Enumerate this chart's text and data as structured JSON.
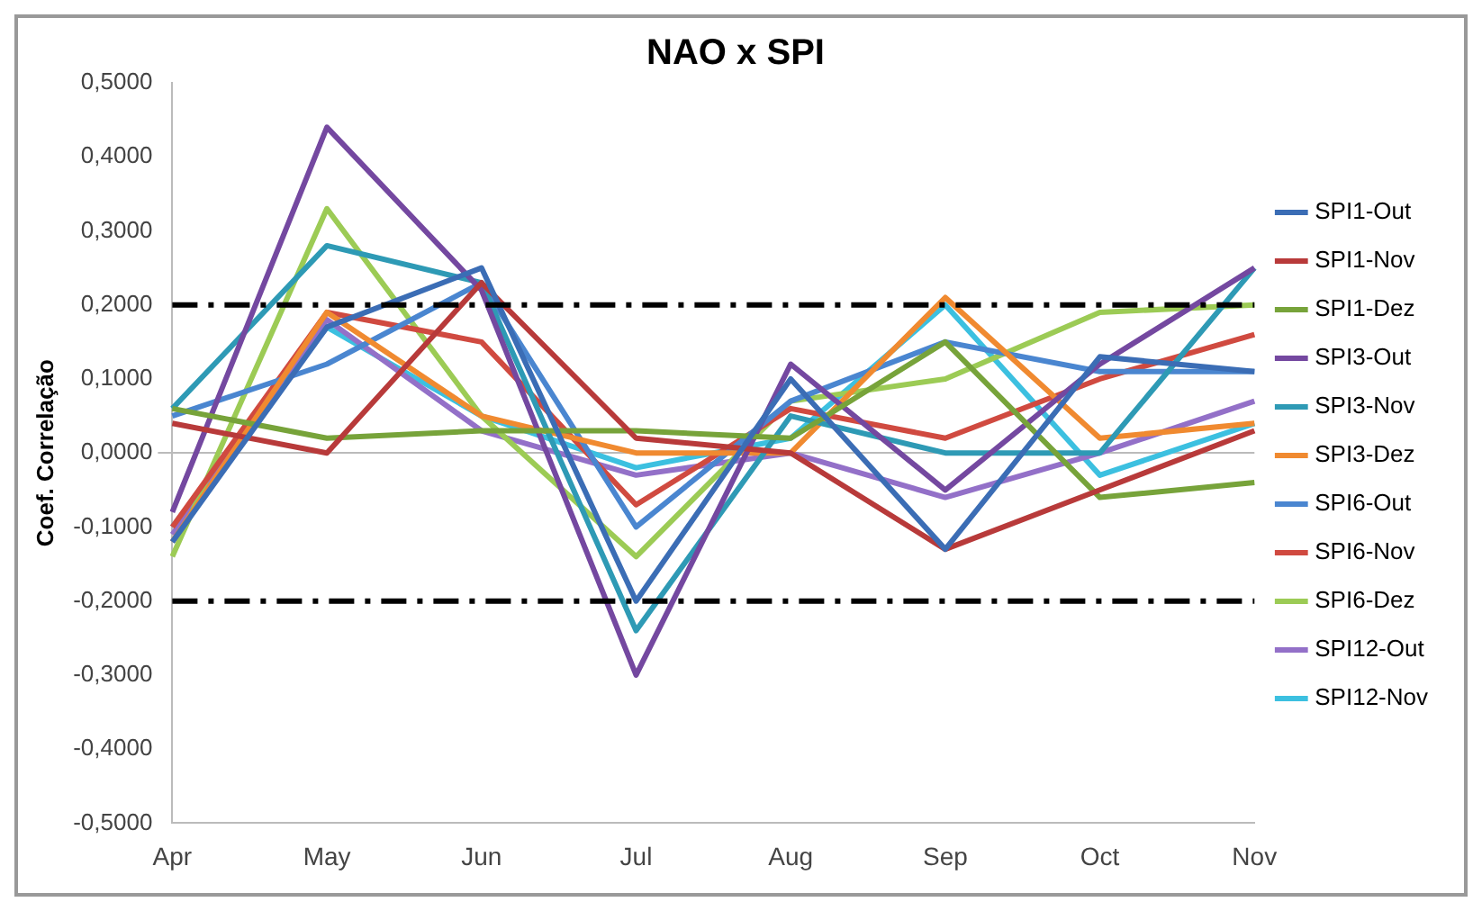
{
  "chart_data": {
    "type": "line",
    "title": "NAO x SPI",
    "ylabel": "Coef. Correlação",
    "categories": [
      "Apr",
      "May",
      "Jun",
      "Jul",
      "Aug",
      "Sep",
      "Oct",
      "Nov"
    ],
    "series": [
      {
        "name": "SPI1-Out",
        "color": "#3b6db5",
        "values": [
          -0.12,
          0.17,
          0.25,
          -0.2,
          0.1,
          -0.13,
          0.13,
          0.11
        ]
      },
      {
        "name": "SPI1-Nov",
        "color": "#b83a3a",
        "values": [
          0.04,
          0.0,
          0.23,
          0.02,
          0.0,
          -0.13,
          -0.05,
          0.03
        ]
      },
      {
        "name": "SPI1-Dez",
        "color": "#77a33a",
        "values": [
          0.06,
          0.02,
          0.03,
          0.03,
          0.02,
          0.15,
          -0.06,
          -0.04
        ]
      },
      {
        "name": "SPI3-Out",
        "color": "#7448a0",
        "values": [
          -0.08,
          0.44,
          0.22,
          -0.3,
          0.12,
          -0.05,
          0.12,
          0.25
        ]
      },
      {
        "name": "SPI3-Nov",
        "color": "#2e9ab5",
        "values": [
          0.06,
          0.28,
          0.23,
          -0.24,
          0.05,
          0.0,
          0.0,
          0.25
        ]
      },
      {
        "name": "SPI3-Dez",
        "color": "#f08a30",
        "values": [
          -0.12,
          0.19,
          0.05,
          0.0,
          0.0,
          0.21,
          0.02,
          0.04
        ]
      },
      {
        "name": "SPI6-Out",
        "color": "#4a86d0",
        "values": [
          0.05,
          0.12,
          0.23,
          -0.1,
          0.07,
          0.15,
          0.11,
          0.11
        ]
      },
      {
        "name": "SPI6-Nov",
        "color": "#d04a40",
        "values": [
          -0.1,
          0.19,
          0.15,
          -0.07,
          0.06,
          0.02,
          0.1,
          0.16
        ]
      },
      {
        "name": "SPI6-Dez",
        "color": "#9ccb55",
        "values": [
          -0.14,
          0.33,
          0.05,
          -0.14,
          0.07,
          0.1,
          0.19,
          0.2
        ]
      },
      {
        "name": "SPI12-Out",
        "color": "#9370c8",
        "values": [
          -0.11,
          0.18,
          0.03,
          -0.03,
          0.0,
          -0.06,
          0.0,
          0.07
        ]
      },
      {
        "name": "SPI12-Nov",
        "color": "#3cc0e0",
        "values": [
          -0.1,
          0.17,
          0.05,
          -0.02,
          0.02,
          0.2,
          -0.03,
          0.04
        ]
      }
    ],
    "ylim": [
      -0.5,
      0.5
    ],
    "yticks": [
      {
        "value": -0.5,
        "label": "-0,5000"
      },
      {
        "value": -0.4,
        "label": "-0,4000"
      },
      {
        "value": -0.3,
        "label": "-0,3000"
      },
      {
        "value": -0.2,
        "label": "-0,2000"
      },
      {
        "value": -0.1,
        "label": "-0,1000"
      },
      {
        "value": 0,
        "label": "0,0000"
      },
      {
        "value": 0.1,
        "label": "0,1000"
      },
      {
        "value": 0.2,
        "label": "0,2000"
      },
      {
        "value": 0.3,
        "label": "0,3000"
      },
      {
        "value": 0.4,
        "label": "0,4000"
      },
      {
        "value": 0.5,
        "label": "0,5000"
      }
    ],
    "ref_lines": [
      {
        "axis": "y",
        "value": 0.2,
        "color": "#000000",
        "line_style": "dashed"
      },
      {
        "axis": "y",
        "value": -0.2,
        "color": "#000000",
        "line_style": "dashed"
      }
    ],
    "grid": false,
    "legend": "right",
    "marker": "none",
    "line_style": "solid"
  }
}
